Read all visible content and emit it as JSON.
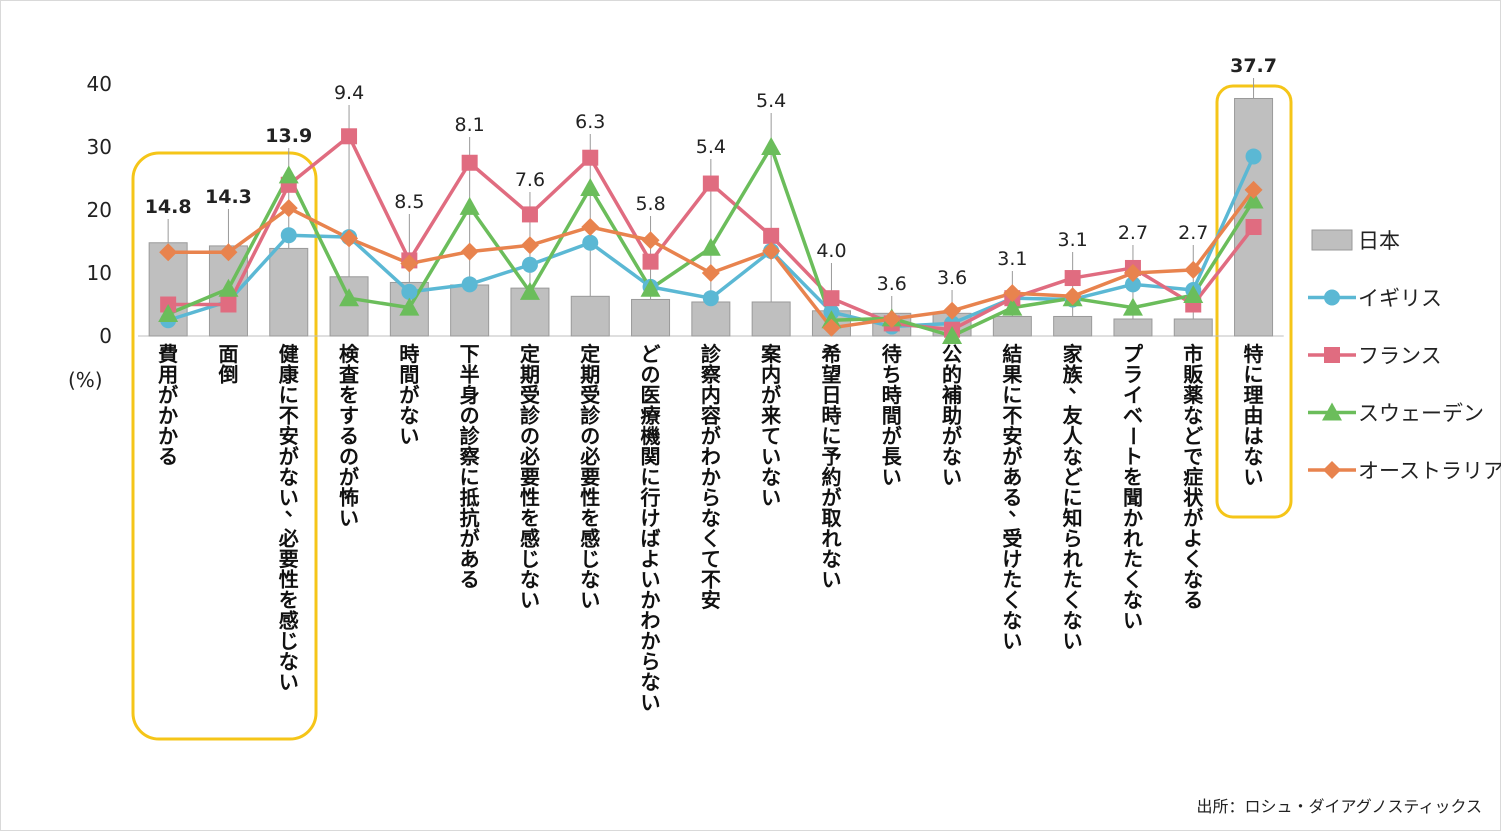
{
  "chart_data": {
    "type": "bar",
    "ylim": [
      0,
      40
    ],
    "yticks": [
      0,
      10,
      20,
      30,
      40
    ],
    "unit_label": "(%)",
    "categories": [
      "費用がかかる",
      "面倒",
      "健康に不安がない、必要性を感じない",
      "検査をするのが怖い",
      "時間がない",
      "下半身の診察に抵抗がある",
      "定期受診の必要性を感じない",
      "定期受診の必要性を感じない",
      "どの医療機関に行けばよいかわからない",
      "診察内容がわからなくて不安",
      "案内が来ていない",
      "希望日時に予約が取れない",
      "待ち時間が長い",
      "公的補助がない",
      "結果に不安がある、受けたくない",
      "家族、友人などに知られたくない",
      "プライベートを聞かれたくない",
      "市販薬などで症状がよくなる",
      "特に理由はない"
    ],
    "series": [
      {
        "name": "日本",
        "kind": "bar",
        "color": "#bfbfbf",
        "values": [
          14.8,
          14.3,
          13.9,
          9.4,
          8.5,
          8.1,
          7.6,
          6.3,
          5.8,
          5.4,
          5.4,
          4.0,
          3.6,
          3.6,
          3.1,
          3.1,
          2.7,
          2.7,
          37.7
        ]
      },
      {
        "name": "イギリス",
        "kind": "line",
        "marker": "circle",
        "color": "#5bb8d4",
        "values": [
          2.5,
          5.5,
          16.0,
          15.7,
          7.0,
          8.2,
          11.3,
          14.8,
          7.8,
          6.0,
          13.5,
          3.8,
          1.5,
          2.0,
          6.0,
          5.8,
          8.2,
          7.3,
          28.5
        ]
      },
      {
        "name": "フランス",
        "kind": "line",
        "marker": "square",
        "color": "#e06c80",
        "values": [
          5.0,
          5.0,
          24.0,
          31.7,
          12.0,
          27.5,
          19.3,
          28.3,
          11.8,
          24.2,
          15.9,
          6.0,
          2.0,
          1.0,
          6.0,
          9.2,
          10.8,
          5.0,
          17.3
        ]
      },
      {
        "name": "スウェーデン",
        "kind": "line",
        "marker": "triangle",
        "color": "#6bbd5b",
        "values": [
          3.5,
          7.5,
          25.5,
          6.0,
          4.5,
          20.5,
          7.0,
          23.5,
          7.5,
          14.0,
          30.0,
          2.5,
          2.8,
          0.0,
          4.5,
          6.0,
          4.5,
          6.5,
          21.5
        ]
      },
      {
        "name": "オーストラリア",
        "kind": "line",
        "marker": "diamond",
        "color": "#e8834e",
        "values": [
          13.3,
          13.3,
          20.3,
          15.5,
          11.5,
          13.4,
          14.4,
          17.3,
          15.2,
          10.0,
          13.5,
          1.3,
          2.7,
          4.0,
          6.8,
          6.3,
          10.0,
          10.5,
          23.2
        ]
      }
    ],
    "data_labels": [
      "14.8",
      "14.3",
      "13.9",
      "9.4",
      "8.5",
      "8.1",
      "7.6",
      "6.3",
      "5.8",
      "5.4",
      "5.4",
      "4.0",
      "3.6",
      "3.6",
      "3.1",
      "3.1",
      "2.7",
      "2.7",
      "37.7"
    ],
    "highlighted_categories": [
      0,
      1,
      2,
      18
    ],
    "highlight_color": "#f5c518",
    "legend_position": "right",
    "grid": false,
    "source": "出所：ロシュ・ダイアグノスティックス"
  }
}
